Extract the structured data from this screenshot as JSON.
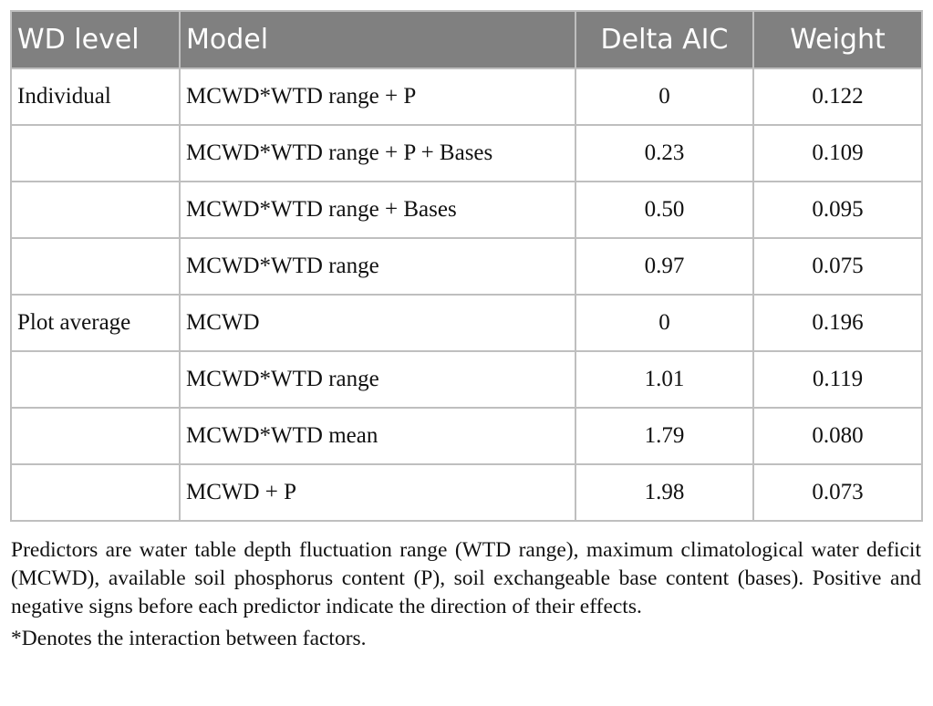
{
  "table": {
    "headers": [
      "WD level",
      "Model",
      "Delta AIC",
      "Weight"
    ],
    "rows": [
      {
        "wd_level": "Individual",
        "model": "MCWD*WTD range + P",
        "delta_aic": "0",
        "weight": "0.122"
      },
      {
        "wd_level": "",
        "model": "MCWD*WTD range + P + Bases",
        "delta_aic": "0.23",
        "weight": "0.109"
      },
      {
        "wd_level": "",
        "model": "MCWD*WTD range + Bases",
        "delta_aic": "0.50",
        "weight": "0.095"
      },
      {
        "wd_level": "",
        "model": "MCWD*WTD range",
        "delta_aic": "0.97",
        "weight": "0.075"
      },
      {
        "wd_level": "Plot average",
        "model": "MCWD",
        "delta_aic": "0",
        "weight": "0.196"
      },
      {
        "wd_level": "",
        "model": "MCWD*WTD range",
        "delta_aic": "1.01",
        "weight": "0.119"
      },
      {
        "wd_level": "",
        "model": "MCWD*WTD mean",
        "delta_aic": "1.79",
        "weight": "0.080"
      },
      {
        "wd_level": "",
        "model": "MCWD + P",
        "delta_aic": "1.98",
        "weight": "0.073"
      }
    ]
  },
  "notes": {
    "predictors": "Predictors are water table depth fluctuation range (WTD range), maximum climatological water deficit (MCWD), available soil phosphorus content (P), soil exchangeable base content (bases). Positive and negative signs before each predictor indicate the direction of their effects.",
    "asterisk": "*Denotes the interaction between factors."
  },
  "colors": {
    "header_bg": "#808080",
    "header_text": "#ffffff",
    "grid": "#bfbfbf"
  }
}
